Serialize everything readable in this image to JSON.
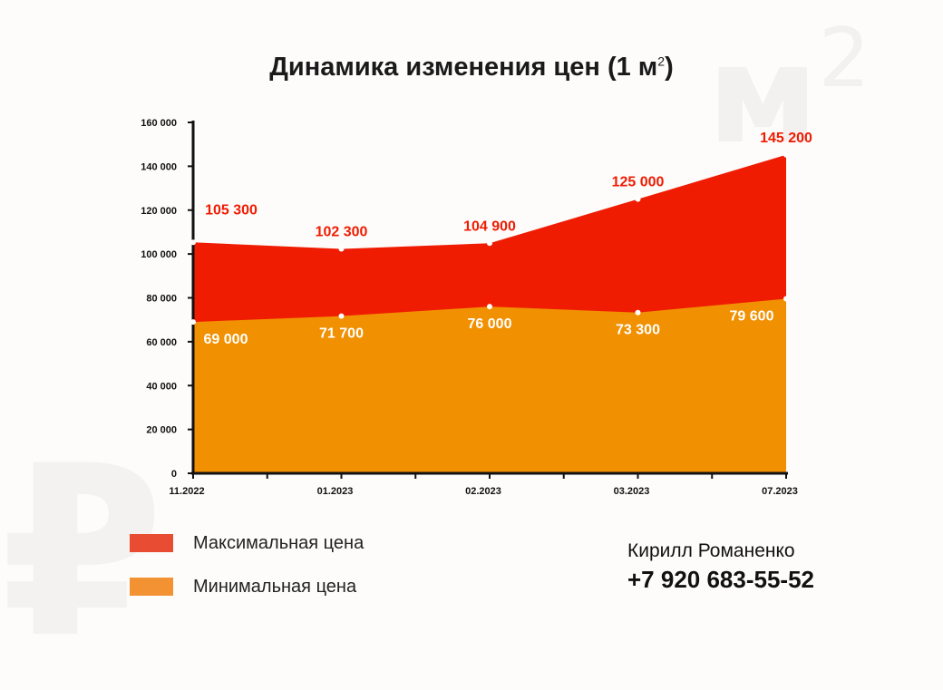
{
  "watermark": {
    "m2_base": "м",
    "m2_sup": "2",
    "ruble": "₽"
  },
  "title": {
    "text": "Динамика изменения цен (1 м",
    "sup": "2",
    "close": ")"
  },
  "colors": {
    "max": "#ef1c02",
    "min": "#f19000",
    "legend_max": "#e84c33",
    "legend_min": "#f39233"
  },
  "chart_data": {
    "type": "area",
    "categories": [
      "11.2022",
      "01.2023",
      "02.2023",
      "03.2023",
      "07.2023"
    ],
    "series": [
      {
        "name": "Максимальная цена",
        "values": [
          105300,
          102300,
          104900,
          125000,
          145200
        ],
        "labels": [
          "105 300",
          "102 300",
          "104 900",
          "125 000",
          "145 200"
        ]
      },
      {
        "name": "Минимальная цена",
        "values": [
          69000,
          71700,
          76000,
          73300,
          79600
        ],
        "labels": [
          "69 000",
          "71 700",
          "76 000",
          "73 300",
          "79 600"
        ]
      }
    ],
    "yticks": [
      "0",
      "20 000",
      "40 000",
      "60 000",
      "80 000",
      "100 000",
      "120 000",
      "140 000",
      "160 000"
    ],
    "ylim": [
      0,
      160000
    ],
    "grid": false
  },
  "legend": {
    "max_label": "Максимальная цена",
    "min_label": "Минимальная цена"
  },
  "contact": {
    "name": "Кирилл Романенко",
    "phone": "+7 920 683-55-52"
  }
}
